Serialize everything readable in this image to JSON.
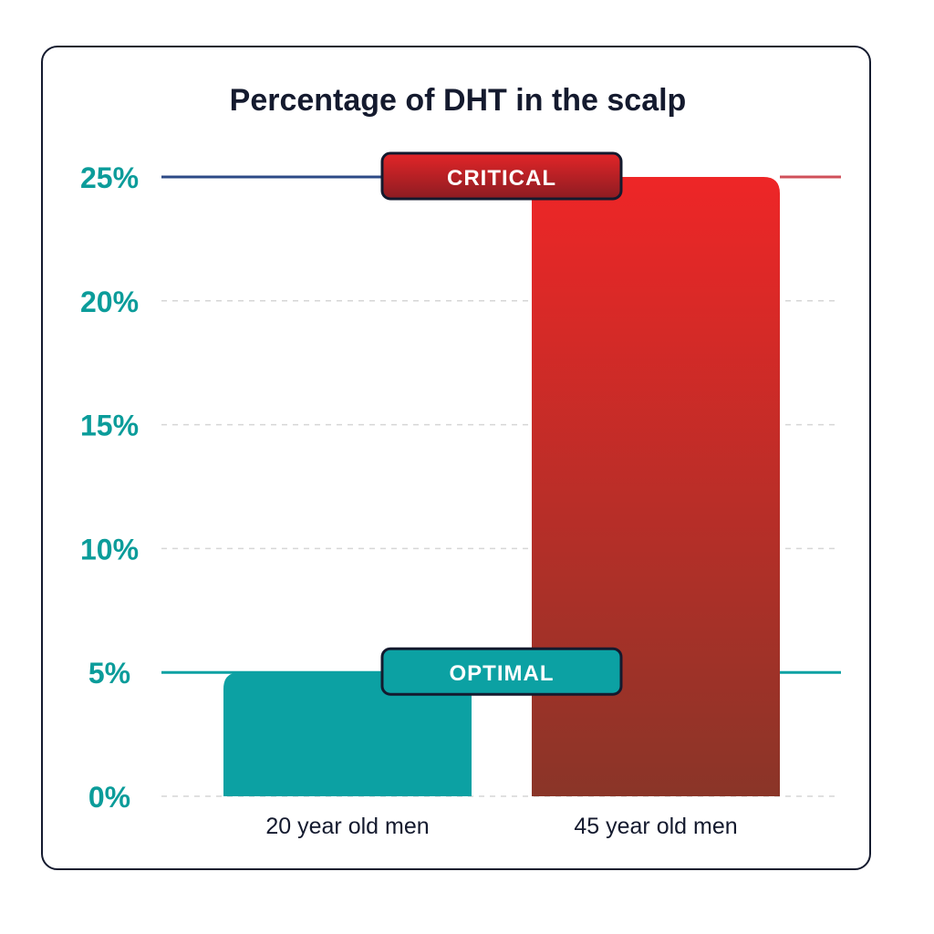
{
  "chart_data": {
    "type": "bar",
    "title": "Percentage of DHT in the scalp",
    "categories": [
      "20 year old men",
      "45 year old men"
    ],
    "values": [
      5,
      25
    ],
    "ylim": [
      0,
      25
    ],
    "yticks": [
      0,
      5,
      10,
      15,
      20,
      25
    ],
    "ytick_labels": [
      "0%",
      "5%",
      "10%",
      "15%",
      "20%",
      "25%"
    ],
    "xlabel": "",
    "ylabel": "",
    "grid": true,
    "reference_lines": [
      {
        "label": "CRITICAL",
        "value": 25,
        "color": "#c21f24"
      },
      {
        "label": "OPTIMAL",
        "value": 5,
        "color": "#0ca1a3"
      }
    ],
    "colors": {
      "bar_optimal": "#0ca1a3",
      "bar_critical_top": "#ee2627",
      "bar_critical_bottom": "#8a3528",
      "axis_text": "#0b9c9a",
      "title": "#141a2e"
    }
  }
}
